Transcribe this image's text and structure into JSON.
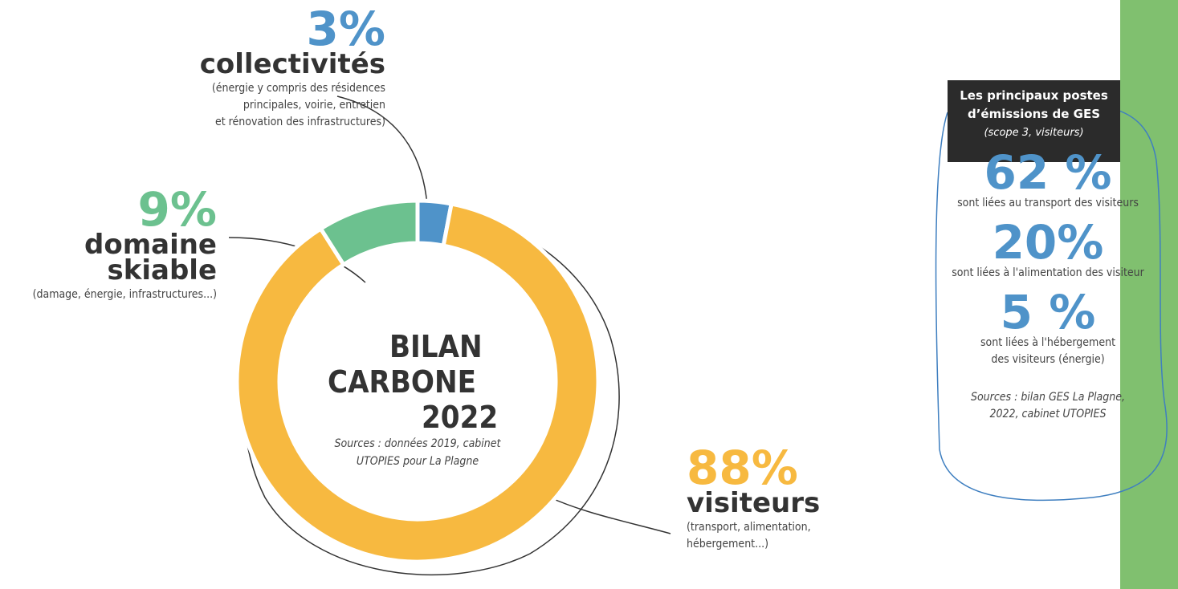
{
  "chart_data": {
    "type": "pie",
    "center_lines": [
      "BILAN",
      "CARBONE",
      "2022"
    ],
    "source_lines": [
      "Sources : données 2019, cabinet",
      "UTOPIES pour La Plagne"
    ],
    "categories": [
      "collectivités",
      "visiteurs",
      "domaine skiable"
    ],
    "descriptions": [
      [
        "(énergie y compris des résidences",
        "principales, voirie, entretien",
        "et rénovation des infrastructures)"
      ],
      [
        "(transport, alimentation,",
        "hébergement...)"
      ],
      [
        "(damage, énergie, infrastructures...)"
      ]
    ],
    "values": [
      3,
      88,
      9
    ],
    "value_labels": [
      "3%",
      "88%",
      "9%"
    ],
    "colors": [
      "#4f93c9",
      "#f7b940",
      "#6cc18f"
    ]
  },
  "panel": {
    "title_lines": [
      "Les principaux postes",
      "d’émissions de GES"
    ],
    "subtitle": "(scope 3, visiteurs)",
    "stats": [
      {
        "label": "62 %",
        "text": [
          "sont liées au transport des visiteurs"
        ]
      },
      {
        "label": "20%",
        "text": [
          "sont liées à l'alimentation des visiteur"
        ]
      },
      {
        "label": "5 %",
        "text": [
          "sont liées à l'hébergement",
          "des visiteurs (énergie)"
        ]
      }
    ],
    "source_lines": [
      "Sources : bilan GES La Plagne,",
      "2022, cabinet UTOPIES"
    ]
  }
}
